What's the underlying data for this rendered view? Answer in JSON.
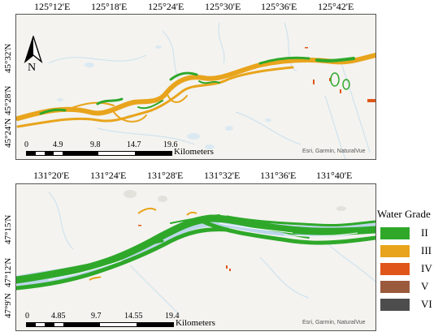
{
  "map_top": {
    "lon_labels": [
      "125°12'E",
      "125°18'E",
      "125°24'E",
      "125°30'E",
      "125°36'E",
      "125°42'E"
    ],
    "lat_labels": [
      "45°32'N",
      "45°28'N",
      "45°24'N"
    ],
    "north_label": "N",
    "scale_numbers": [
      "0",
      "4.9",
      "9.8",
      "14.7",
      "19.6"
    ],
    "scale_unit": "Kilometers",
    "credit": "Esri, Garmin, NaturalVue"
  },
  "map_bottom": {
    "lon_labels": [
      "131°20'E",
      "131°24'E",
      "131°28'E",
      "131°32'E",
      "131°36'E",
      "131°40'E"
    ],
    "lat_labels": [
      "47°15'N",
      "47°12'N",
      "47°9'N"
    ],
    "scale_numbers": [
      "0",
      "4.85",
      "9.7",
      "14.55",
      "19.4"
    ],
    "scale_unit": "Kilometers",
    "credit": "Esri, Garmin, NaturalVue"
  },
  "legend": {
    "title": "Water Grade",
    "items": [
      {
        "label": "II",
        "color": "#2fa82a"
      },
      {
        "label": "III",
        "color": "#e8a41c"
      },
      {
        "label": "IV",
        "color": "#e0561a"
      },
      {
        "label": "V",
        "color": "#9b5a3c"
      },
      {
        "label": "VI",
        "color": "#4d4d4d"
      }
    ]
  }
}
